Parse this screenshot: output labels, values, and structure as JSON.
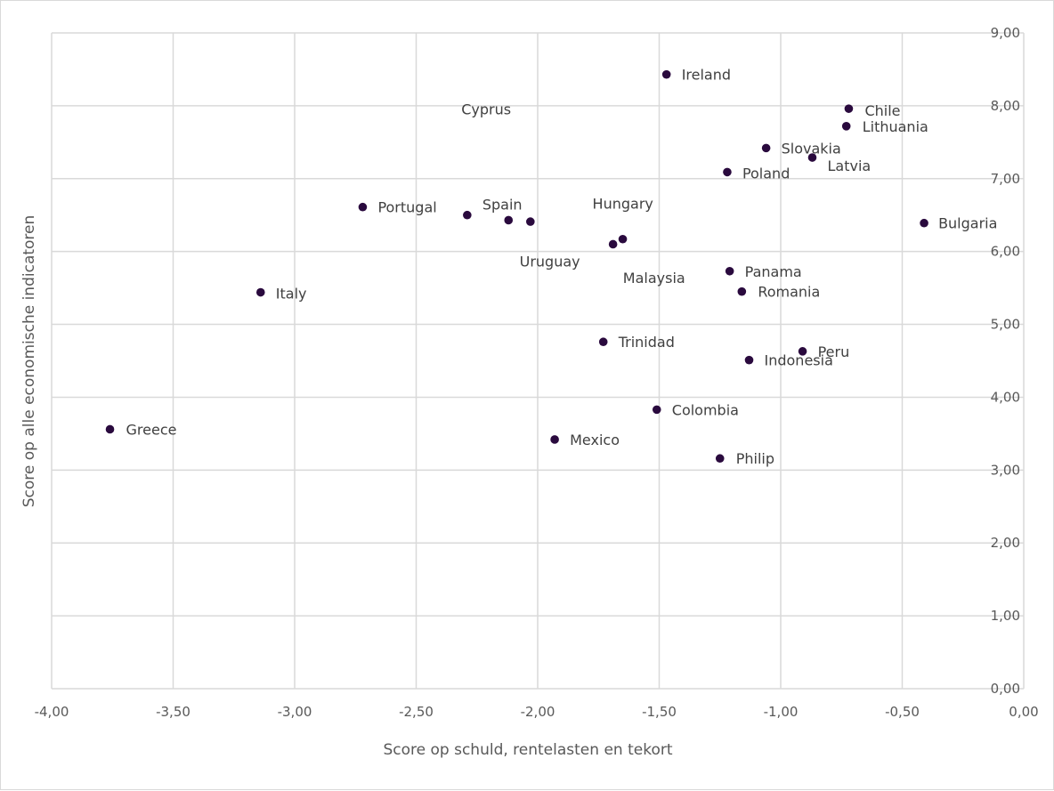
{
  "chart_data": {
    "type": "scatter",
    "xlabel": "Score op schuld, rentelasten en tekort",
    "ylabel": "Score op alle economische indicatoren",
    "xlim": [
      -4,
      0
    ],
    "ylim": [
      0,
      9
    ],
    "x_ticks": [
      "-4,00",
      "-3,50",
      "-3,00",
      "-2,50",
      "-2,00",
      "-1,50",
      "-1,00",
      "-0,50",
      "0,00"
    ],
    "y_ticks": [
      "0,00",
      "1,00",
      "2,00",
      "3,00",
      "4,00",
      "5,00",
      "6,00",
      "7,00",
      "8,00",
      "9,00"
    ],
    "y_axis_position": "right",
    "grid": true,
    "marker_color": "#2a0a3e",
    "points": [
      {
        "label": "Ireland",
        "x": -1.47,
        "y": 8.43
      },
      {
        "label": "Chile",
        "x": -0.72,
        "y": 7.96
      },
      {
        "label": "Lithuania",
        "x": -0.73,
        "y": 7.72
      },
      {
        "label": "Slovakia",
        "x": -1.06,
        "y": 7.42
      },
      {
        "label": "Latvia",
        "x": -0.87,
        "y": 7.29
      },
      {
        "label": "Poland",
        "x": -1.22,
        "y": 7.09
      },
      {
        "label": "Bulgaria",
        "x": -0.41,
        "y": 6.39
      },
      {
        "label": "Portugal",
        "x": -2.72,
        "y": 6.61
      },
      {
        "label": "Spain",
        "x": -2.29,
        "y": 6.5
      },
      {
        "label": "Cyprus",
        "x": -2.12,
        "y": 6.43
      },
      {
        "label": "Malaysia",
        "x": -2.03,
        "y": 6.41
      },
      {
        "label": "Hungary",
        "x": -1.65,
        "y": 6.17
      },
      {
        "label": "Uruguay",
        "x": -1.69,
        "y": 6.1
      },
      {
        "label": "Panama",
        "x": -1.21,
        "y": 5.73
      },
      {
        "label": "Romania",
        "x": -1.16,
        "y": 5.45
      },
      {
        "label": "Italy",
        "x": -3.14,
        "y": 5.44
      },
      {
        "label": "Trinidad",
        "x": -1.73,
        "y": 4.76
      },
      {
        "label": "Peru",
        "x": -0.91,
        "y": 4.63
      },
      {
        "label": "Indonesia",
        "x": -1.13,
        "y": 4.51
      },
      {
        "label": "Colombia",
        "x": -1.51,
        "y": 3.83
      },
      {
        "label": "Greece",
        "x": -3.76,
        "y": 3.56
      },
      {
        "label": "Mexico",
        "x": -1.93,
        "y": 3.42
      },
      {
        "label": "Philip",
        "x": -1.25,
        "y": 3.16
      }
    ]
  }
}
